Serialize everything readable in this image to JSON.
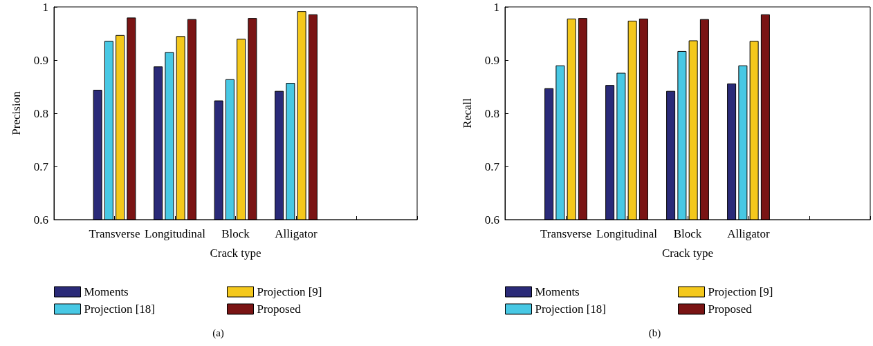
{
  "chart_data": [
    {
      "type": "bar",
      "xlabel": "Crack type",
      "ylabel": "Precision",
      "categories": [
        null,
        "Transverse",
        "Longitudinal",
        "Block",
        "Alligator",
        null,
        null
      ],
      "series": [
        {
          "name": "Moments",
          "color": "#2a2a78",
          "values": [
            null,
            0.844,
            0.888,
            0.824,
            0.842,
            null,
            null
          ]
        },
        {
          "name": "Projection [18]",
          "color": "#48c8e4",
          "values": [
            null,
            0.936,
            0.915,
            0.864,
            0.857,
            null,
            null
          ]
        },
        {
          "name": "Projection [9]",
          "color": "#f4c81c",
          "values": [
            null,
            0.947,
            0.945,
            0.94,
            0.992,
            null,
            null
          ]
        },
        {
          "name": "Proposed",
          "color": "#7a1414",
          "values": [
            null,
            0.98,
            0.977,
            0.979,
            0.986,
            null,
            null
          ]
        }
      ],
      "ylim": [
        0.6,
        1
      ],
      "yticks": [
        0.6,
        0.7,
        0.8,
        0.9,
        1
      ],
      "grid": false,
      "legend": "bottom",
      "annotations": [
        "(a)"
      ]
    },
    {
      "type": "bar",
      "xlabel": "Crack type",
      "ylabel": "Recall",
      "categories": [
        null,
        "Transverse",
        "Longitudinal",
        "Block",
        "Alligator",
        null,
        null
      ],
      "series": [
        {
          "name": "Moments",
          "color": "#2a2a78",
          "values": [
            null,
            0.847,
            0.853,
            0.842,
            0.856,
            null,
            null
          ]
        },
        {
          "name": "Projection [18]",
          "color": "#48c8e4",
          "values": [
            null,
            0.89,
            0.876,
            0.917,
            0.89,
            null,
            null
          ]
        },
        {
          "name": "Projection [9]",
          "color": "#f4c81c",
          "values": [
            null,
            0.978,
            0.974,
            0.937,
            0.936,
            null,
            null
          ]
        },
        {
          "name": "Proposed",
          "color": "#7a1414",
          "values": [
            null,
            0.979,
            0.978,
            0.977,
            0.986,
            null,
            null
          ]
        }
      ],
      "ylim": [
        0.6,
        1
      ],
      "yticks": [
        0.6,
        0.7,
        0.8,
        0.9,
        1
      ],
      "grid": false,
      "legend": "bottom",
      "annotations": [
        "(b)"
      ]
    }
  ]
}
